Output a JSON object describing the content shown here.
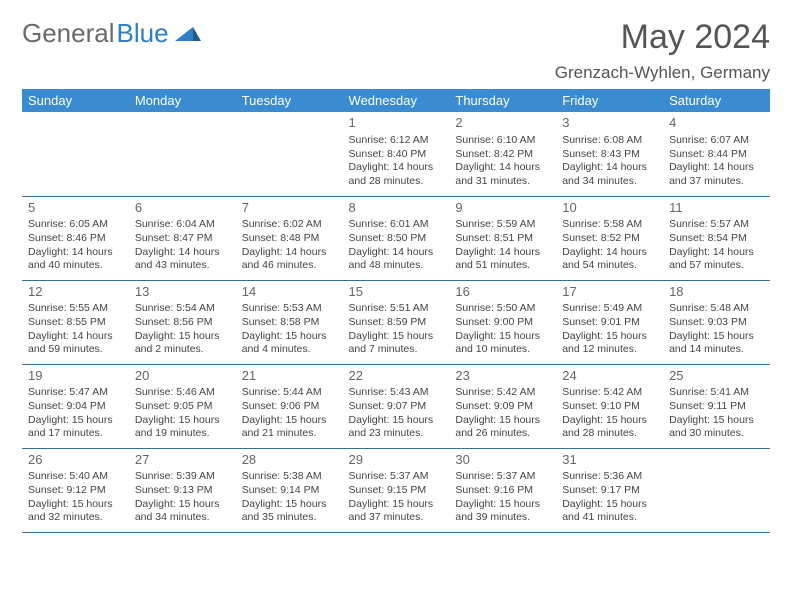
{
  "logo": {
    "general": "General",
    "blue": "Blue"
  },
  "title": "May 2024",
  "location": "Grenzach-Wyhlen, Germany",
  "headers": [
    "Sunday",
    "Monday",
    "Tuesday",
    "Wednesday",
    "Thursday",
    "Friday",
    "Saturday"
  ],
  "colors": {
    "header_bg": "#3b8bd0",
    "header_fg": "#ffffff",
    "border": "#2f6fa8",
    "title_color": "#555555",
    "logo_gray": "#6a6a6a",
    "logo_blue": "#2f7fc2"
  },
  "weeks": [
    [
      null,
      null,
      null,
      {
        "n": "1",
        "sr": "6:12 AM",
        "ss": "8:40 PM",
        "dl": "14 hours and 28 minutes."
      },
      {
        "n": "2",
        "sr": "6:10 AM",
        "ss": "8:42 PM",
        "dl": "14 hours and 31 minutes."
      },
      {
        "n": "3",
        "sr": "6:08 AM",
        "ss": "8:43 PM",
        "dl": "14 hours and 34 minutes."
      },
      {
        "n": "4",
        "sr": "6:07 AM",
        "ss": "8:44 PM",
        "dl": "14 hours and 37 minutes."
      }
    ],
    [
      {
        "n": "5",
        "sr": "6:05 AM",
        "ss": "8:46 PM",
        "dl": "14 hours and 40 minutes."
      },
      {
        "n": "6",
        "sr": "6:04 AM",
        "ss": "8:47 PM",
        "dl": "14 hours and 43 minutes."
      },
      {
        "n": "7",
        "sr": "6:02 AM",
        "ss": "8:48 PM",
        "dl": "14 hours and 46 minutes."
      },
      {
        "n": "8",
        "sr": "6:01 AM",
        "ss": "8:50 PM",
        "dl": "14 hours and 48 minutes."
      },
      {
        "n": "9",
        "sr": "5:59 AM",
        "ss": "8:51 PM",
        "dl": "14 hours and 51 minutes."
      },
      {
        "n": "10",
        "sr": "5:58 AM",
        "ss": "8:52 PM",
        "dl": "14 hours and 54 minutes."
      },
      {
        "n": "11",
        "sr": "5:57 AM",
        "ss": "8:54 PM",
        "dl": "14 hours and 57 minutes."
      }
    ],
    [
      {
        "n": "12",
        "sr": "5:55 AM",
        "ss": "8:55 PM",
        "dl": "14 hours and 59 minutes."
      },
      {
        "n": "13",
        "sr": "5:54 AM",
        "ss": "8:56 PM",
        "dl": "15 hours and 2 minutes."
      },
      {
        "n": "14",
        "sr": "5:53 AM",
        "ss": "8:58 PM",
        "dl": "15 hours and 4 minutes."
      },
      {
        "n": "15",
        "sr": "5:51 AM",
        "ss": "8:59 PM",
        "dl": "15 hours and 7 minutes."
      },
      {
        "n": "16",
        "sr": "5:50 AM",
        "ss": "9:00 PM",
        "dl": "15 hours and 10 minutes."
      },
      {
        "n": "17",
        "sr": "5:49 AM",
        "ss": "9:01 PM",
        "dl": "15 hours and 12 minutes."
      },
      {
        "n": "18",
        "sr": "5:48 AM",
        "ss": "9:03 PM",
        "dl": "15 hours and 14 minutes."
      }
    ],
    [
      {
        "n": "19",
        "sr": "5:47 AM",
        "ss": "9:04 PM",
        "dl": "15 hours and 17 minutes."
      },
      {
        "n": "20",
        "sr": "5:46 AM",
        "ss": "9:05 PM",
        "dl": "15 hours and 19 minutes."
      },
      {
        "n": "21",
        "sr": "5:44 AM",
        "ss": "9:06 PM",
        "dl": "15 hours and 21 minutes."
      },
      {
        "n": "22",
        "sr": "5:43 AM",
        "ss": "9:07 PM",
        "dl": "15 hours and 23 minutes."
      },
      {
        "n": "23",
        "sr": "5:42 AM",
        "ss": "9:09 PM",
        "dl": "15 hours and 26 minutes."
      },
      {
        "n": "24",
        "sr": "5:42 AM",
        "ss": "9:10 PM",
        "dl": "15 hours and 28 minutes."
      },
      {
        "n": "25",
        "sr": "5:41 AM",
        "ss": "9:11 PM",
        "dl": "15 hours and 30 minutes."
      }
    ],
    [
      {
        "n": "26",
        "sr": "5:40 AM",
        "ss": "9:12 PM",
        "dl": "15 hours and 32 minutes."
      },
      {
        "n": "27",
        "sr": "5:39 AM",
        "ss": "9:13 PM",
        "dl": "15 hours and 34 minutes."
      },
      {
        "n": "28",
        "sr": "5:38 AM",
        "ss": "9:14 PM",
        "dl": "15 hours and 35 minutes."
      },
      {
        "n": "29",
        "sr": "5:37 AM",
        "ss": "9:15 PM",
        "dl": "15 hours and 37 minutes."
      },
      {
        "n": "30",
        "sr": "5:37 AM",
        "ss": "9:16 PM",
        "dl": "15 hours and 39 minutes."
      },
      {
        "n": "31",
        "sr": "5:36 AM",
        "ss": "9:17 PM",
        "dl": "15 hours and 41 minutes."
      },
      null
    ]
  ]
}
